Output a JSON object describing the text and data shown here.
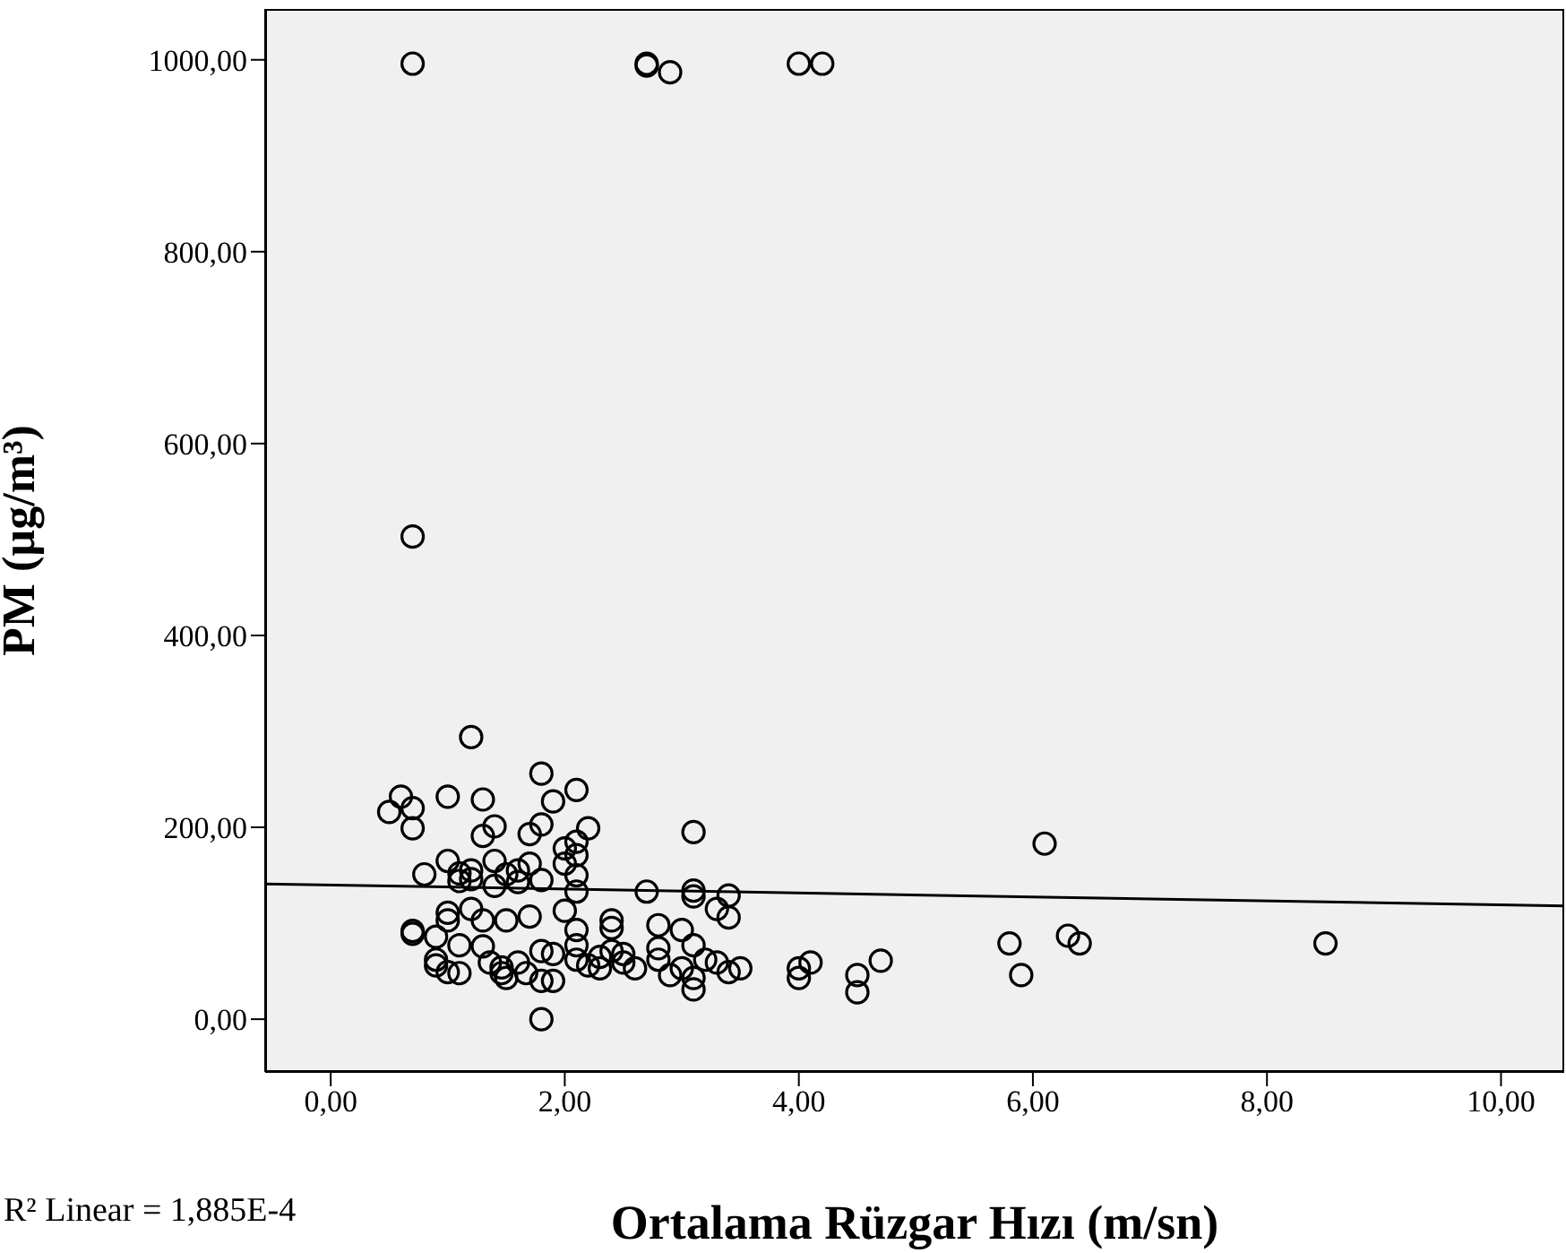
{
  "chart_data": {
    "type": "scatter",
    "xlabel": "Ortalama Rüzgar Hızı (m/sn)",
    "ylabel": "PM    (µg/m³)",
    "annotations": [
      "R² Linear = 1,885E-4"
    ],
    "xlim": [
      -0.56,
      10.54
    ],
    "ylim": [
      -55,
      1053
    ],
    "xticks": [
      {
        "value": 0,
        "label": "0,00"
      },
      {
        "value": 2,
        "label": "2,00"
      },
      {
        "value": 4,
        "label": "4,00"
      },
      {
        "value": 6,
        "label": "6,00"
      },
      {
        "value": 8,
        "label": "8,00"
      },
      {
        "value": 10,
        "label": "10,00"
      }
    ],
    "yticks": [
      {
        "value": 0,
        "label": "0,00"
      },
      {
        "value": 200,
        "label": "200,00"
      },
      {
        "value": 400,
        "label": "400,00"
      },
      {
        "value": 600,
        "label": "600,00"
      },
      {
        "value": 800,
        "label": "800,00"
      },
      {
        "value": 1000,
        "label": "1000,00"
      }
    ],
    "series": [
      {
        "marker": "circle",
        "color": "#000000",
        "x": [
          0.7,
          2.7,
          2.7,
          2.9,
          4.0,
          4.2,
          0.7,
          1.2,
          1.8,
          2.1,
          1.9,
          1.0,
          1.3,
          0.6,
          0.7,
          0.5,
          0.7,
          1.4,
          1.3,
          1.8,
          1.7,
          2.2,
          3.1,
          2.1,
          2.0,
          2.1,
          2.0,
          2.1,
          2.1,
          0.8,
          1.0,
          1.1,
          1.1,
          1.2,
          1.2,
          1.4,
          1.4,
          1.5,
          1.6,
          1.6,
          1.7,
          1.8,
          2.7,
          3.1,
          3.1,
          3.4,
          3.3,
          3.4,
          2.0,
          2.1,
          1.0,
          1.0,
          1.2,
          1.3,
          1.5,
          1.7,
          0.7,
          0.7,
          0.9,
          1.1,
          1.3,
          2.4,
          2.4,
          2.8,
          3.0,
          3.1,
          0.9,
          0.9,
          1.0,
          1.1,
          1.36,
          1.46,
          1.5,
          1.46,
          1.6,
          1.67,
          1.8,
          1.8,
          1.9,
          1.8,
          1.9,
          2.1,
          2.1,
          2.2,
          2.3,
          2.3,
          2.4,
          2.5,
          2.5,
          2.6,
          2.8,
          2.8,
          2.9,
          3.0,
          3.1,
          3.1,
          3.2,
          3.3,
          3.4,
          3.5,
          4.0,
          4.1,
          4.0,
          4.5,
          4.5,
          4.7,
          6.1,
          5.8,
          5.9,
          6.3,
          6.4,
          8.5
        ],
        "values": [
          996,
          996,
          994,
          987,
          996,
          996,
          503,
          294,
          256,
          239,
          227,
          232,
          229,
          232,
          220,
          216,
          199,
          201,
          191,
          203,
          193,
          199,
          195,
          185,
          178,
          171,
          162,
          150,
          133,
          151,
          165,
          152,
          144,
          155,
          146,
          165,
          139,
          151,
          155,
          143,
          162,
          145,
          133,
          134,
          128,
          129,
          115,
          106,
          113,
          93,
          111,
          103,
          115,
          103,
          103,
          107,
          92,
          89,
          86,
          77,
          76,
          103,
          95,
          98,
          93,
          77,
          62,
          56,
          49,
          48,
          59,
          54,
          43,
          48,
          59,
          48,
          40,
          0,
          40,
          71,
          68,
          77,
          62,
          56,
          65,
          53,
          71,
          59,
          68,
          53,
          74,
          62,
          46,
          53,
          43,
          31,
          62,
          59,
          49,
          53,
          53,
          59,
          43,
          46,
          28,
          61,
          183,
          79,
          46,
          87,
          79,
          79
        ]
      },
      {
        "type": "line",
        "color": "#000000",
        "x": [
          -0.56,
          10.54
        ],
        "values": [
          141,
          118
        ]
      }
    ]
  }
}
